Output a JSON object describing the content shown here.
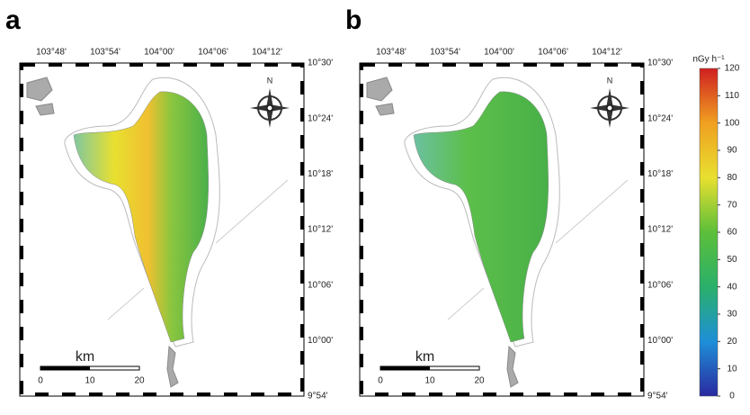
{
  "panels": [
    {
      "label": "a",
      "lon_labels": [
        "103°48'",
        "103°54'",
        "104°00'",
        "104°06'",
        "104°12'"
      ],
      "lat_labels": [
        "10°30'",
        "10°24'",
        "10°18'",
        "10°12'",
        "10°06'",
        "10°00'",
        "9°54'"
      ],
      "north": "N",
      "scale_unit": "km",
      "scale_ticks": [
        0,
        10,
        20
      ]
    },
    {
      "label": "b",
      "lon_labels": [
        "103°48'",
        "103°54'",
        "104°00'",
        "104°06'",
        "104°12'"
      ],
      "lat_labels": [
        "10°30'",
        "10°24'",
        "10°18'",
        "10°12'",
        "10°06'",
        "10°00'",
        "9°54'"
      ],
      "north": "N",
      "scale_unit": "km",
      "scale_ticks": [
        0,
        10,
        20
      ]
    }
  ],
  "colorbar": {
    "label": "nGy h⁻¹",
    "range": [
      0,
      120
    ],
    "ticks": [
      0,
      10,
      20,
      30,
      40,
      50,
      60,
      70,
      80,
      90,
      100,
      110,
      120
    ],
    "colors": [
      "#2a2aa0",
      "#1e8fd8",
      "#2ab06a",
      "#5cbf3a",
      "#e8e030",
      "#f0a020",
      "#d02020"
    ]
  }
}
